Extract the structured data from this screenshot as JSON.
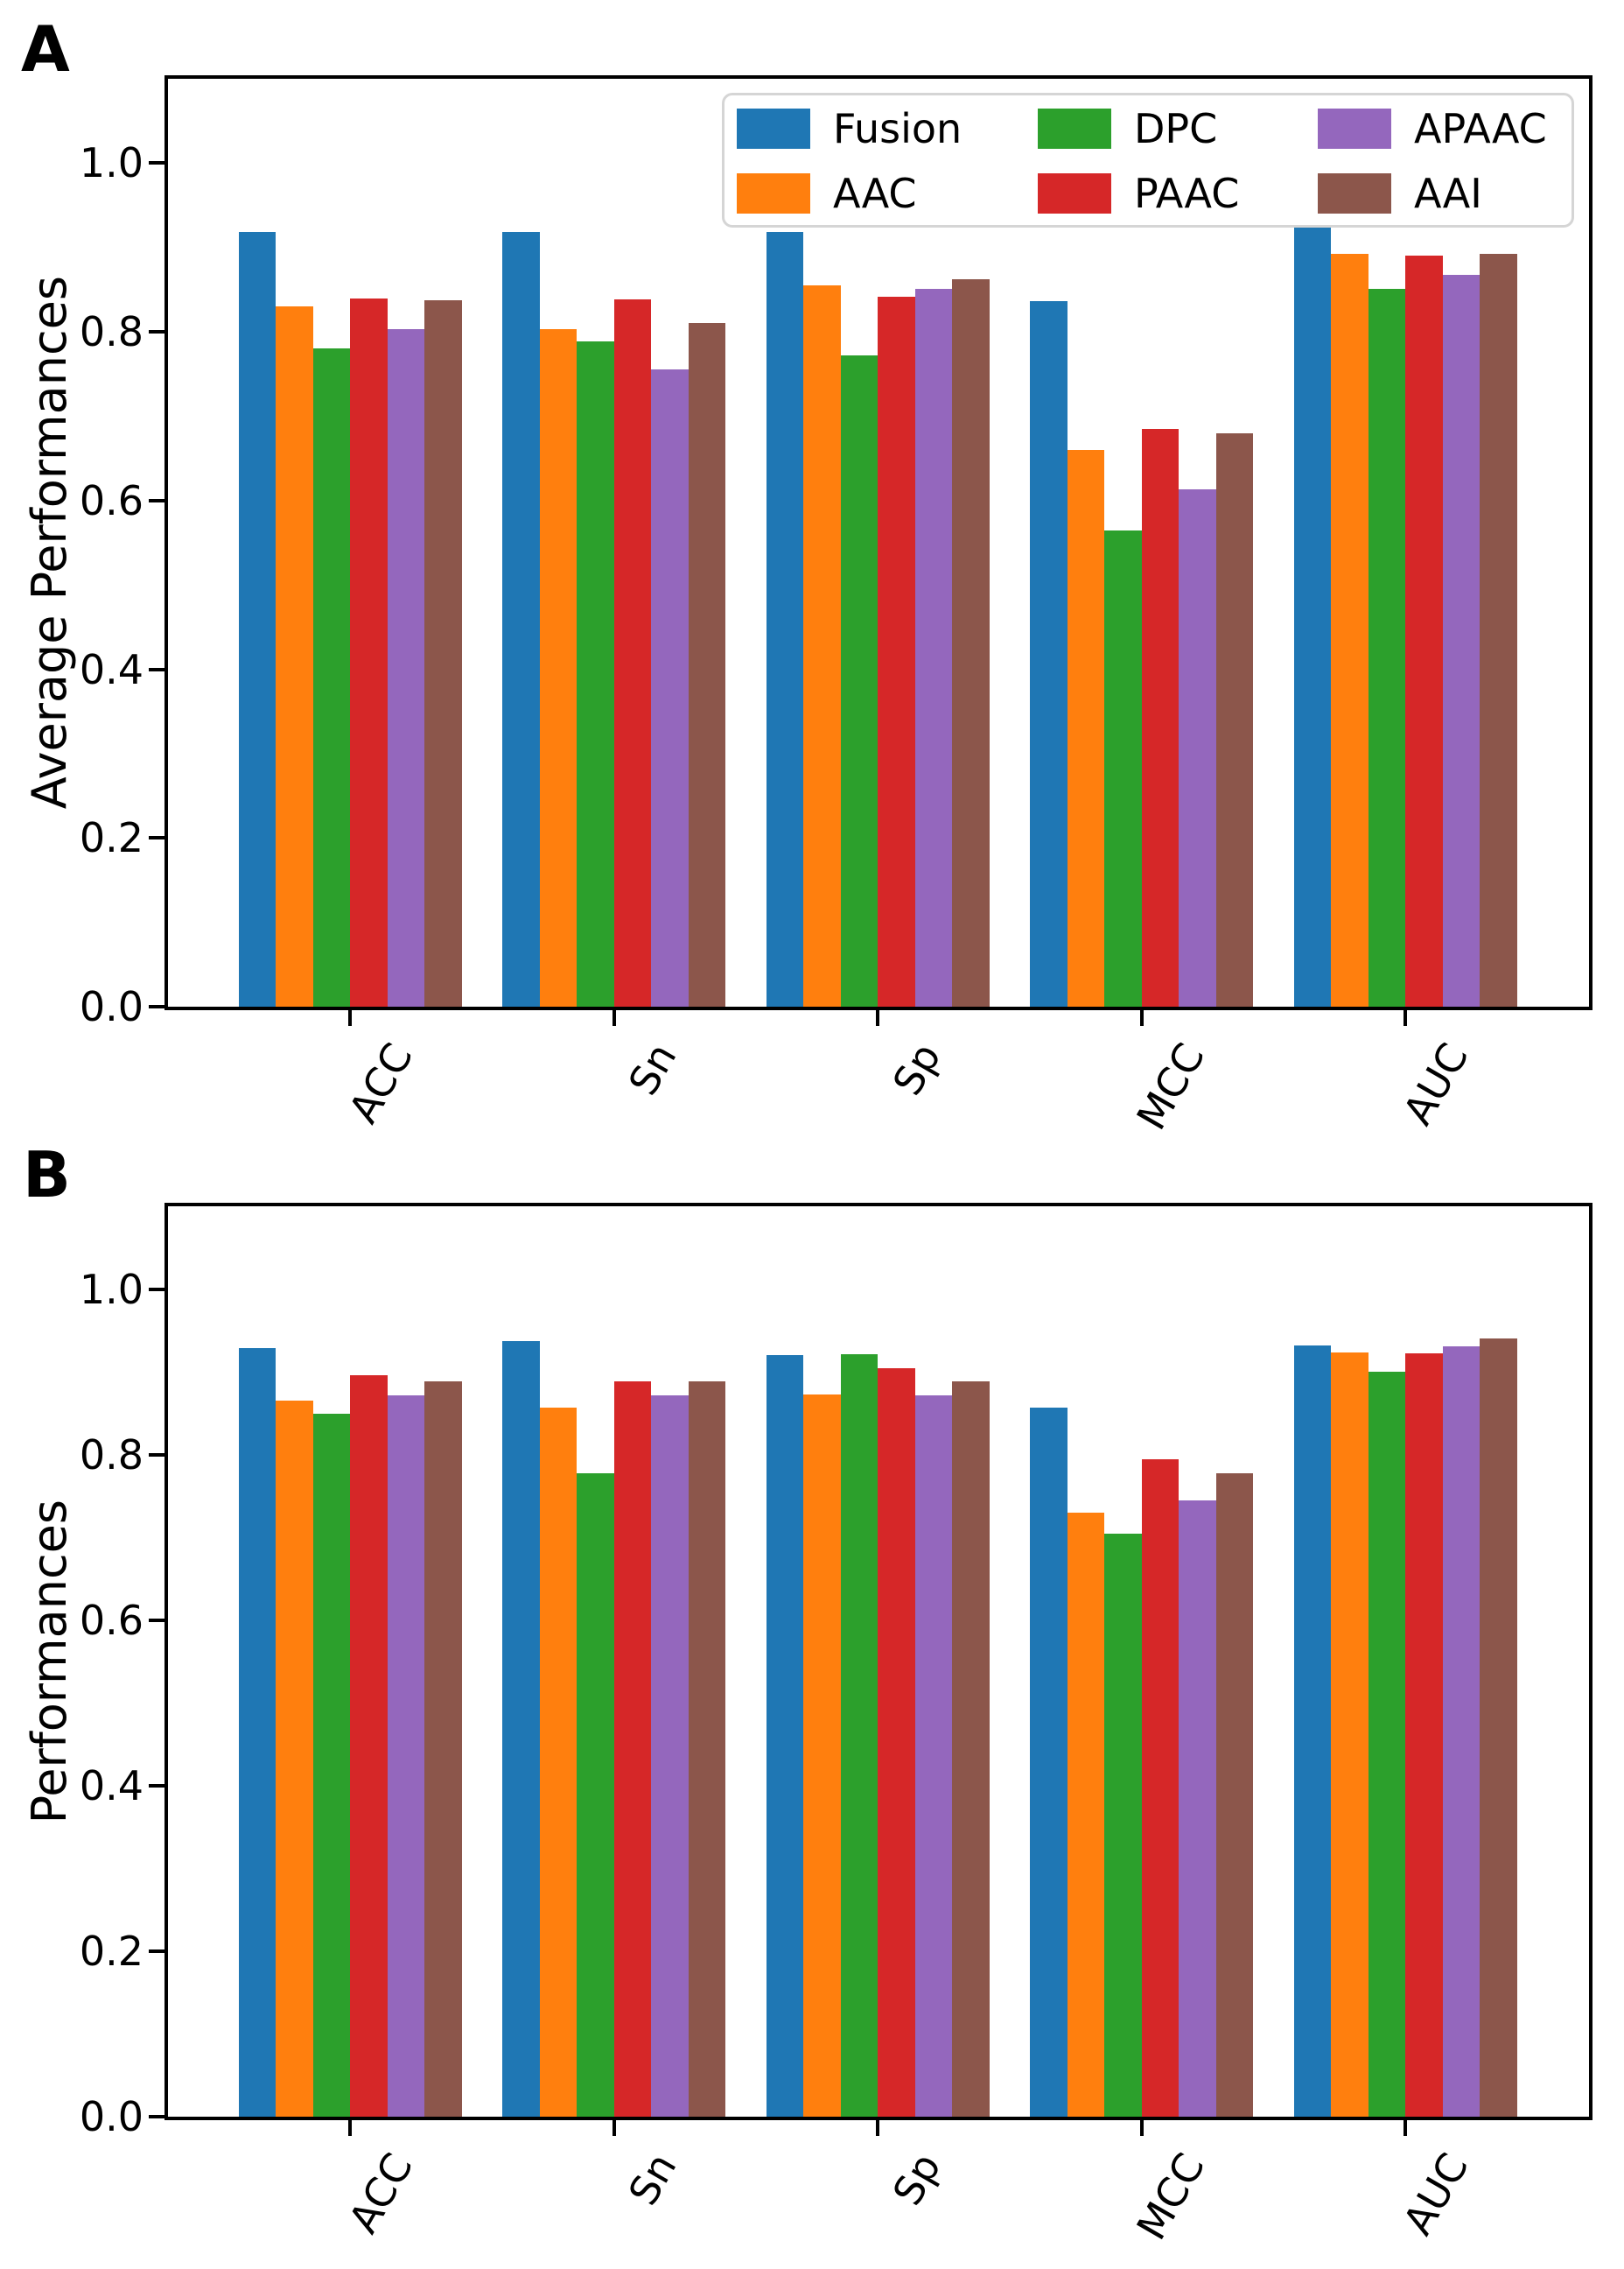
{
  "figure": {
    "background": "#ffffff",
    "panels": [
      {
        "label": "A",
        "ylabel": "Average Performances"
      },
      {
        "label": "B",
        "ylabel": "Performances"
      }
    ]
  },
  "legend": {
    "labels": [
      "Fusion",
      "AAC",
      "DPC",
      "PAAC",
      "APAAC",
      "AAI"
    ],
    "columns": 3,
    "position": "upper center"
  },
  "colors": {
    "Fusion": "#1f77b4",
    "AAC": "#ff7f0e",
    "DPC": "#2ca02c",
    "PAAC": "#d62728",
    "APAAC": "#9467bd",
    "AAI": "#8c564b"
  },
  "chart_data": [
    {
      "type": "bar",
      "panel": "A",
      "title": "",
      "xlabel": "",
      "ylabel": "Average Performances",
      "categories": [
        "ACC",
        "Sn",
        "Sp",
        "MCC",
        "AUC"
      ],
      "yticks": [
        "0.0",
        "0.2",
        "0.4",
        "0.6",
        "0.8",
        "1.0"
      ],
      "ytick_values": [
        0.0,
        0.2,
        0.4,
        0.6,
        0.8,
        1.0
      ],
      "ylim": [
        0,
        1.1
      ],
      "grid": false,
      "legend_position": "upper center",
      "series": [
        {
          "name": "Fusion",
          "color": "#1f77b4",
          "values": [
            0.918,
            0.918,
            0.918,
            0.836,
            0.937
          ]
        },
        {
          "name": "AAC",
          "color": "#ff7f0e",
          "values": [
            0.83,
            0.803,
            0.855,
            0.66,
            0.892
          ]
        },
        {
          "name": "DPC",
          "color": "#2ca02c",
          "values": [
            0.78,
            0.789,
            0.772,
            0.565,
            0.851
          ]
        },
        {
          "name": "PAAC",
          "color": "#d62728",
          "values": [
            0.84,
            0.839,
            0.842,
            0.685,
            0.89
          ]
        },
        {
          "name": "APAAC",
          "color": "#9467bd",
          "values": [
            0.803,
            0.756,
            0.851,
            0.613,
            0.868
          ]
        },
        {
          "name": "AAI",
          "color": "#8c564b",
          "values": [
            0.838,
            0.811,
            0.862,
            0.68,
            0.892
          ]
        }
      ]
    },
    {
      "type": "bar",
      "panel": "B",
      "title": "",
      "xlabel": "",
      "ylabel": "Performances",
      "categories": [
        "ACC",
        "Sn",
        "Sp",
        "MCC",
        "AUC"
      ],
      "yticks": [
        "0.0",
        "0.2",
        "0.4",
        "0.6",
        "0.8",
        "1.0"
      ],
      "ytick_values": [
        0.0,
        0.2,
        0.4,
        0.6,
        0.8,
        1.0
      ],
      "ylim": [
        0,
        1.1
      ],
      "grid": false,
      "legend_position": "none",
      "series": [
        {
          "name": "Fusion",
          "color": "#1f77b4",
          "values": [
            0.929,
            0.937,
            0.92,
            0.857,
            0.932
          ]
        },
        {
          "name": "AAC",
          "color": "#ff7f0e",
          "values": [
            0.865,
            0.857,
            0.873,
            0.73,
            0.923
          ]
        },
        {
          "name": "DPC",
          "color": "#2ca02c",
          "values": [
            0.849,
            0.777,
            0.921,
            0.705,
            0.9
          ]
        },
        {
          "name": "PAAC",
          "color": "#d62728",
          "values": [
            0.896,
            0.889,
            0.904,
            0.794,
            0.922
          ]
        },
        {
          "name": "APAAC",
          "color": "#9467bd",
          "values": [
            0.872,
            0.872,
            0.872,
            0.745,
            0.931
          ]
        },
        {
          "name": "AAI",
          "color": "#8c564b",
          "values": [
            0.888,
            0.888,
            0.888,
            0.777,
            0.94
          ]
        }
      ]
    }
  ]
}
